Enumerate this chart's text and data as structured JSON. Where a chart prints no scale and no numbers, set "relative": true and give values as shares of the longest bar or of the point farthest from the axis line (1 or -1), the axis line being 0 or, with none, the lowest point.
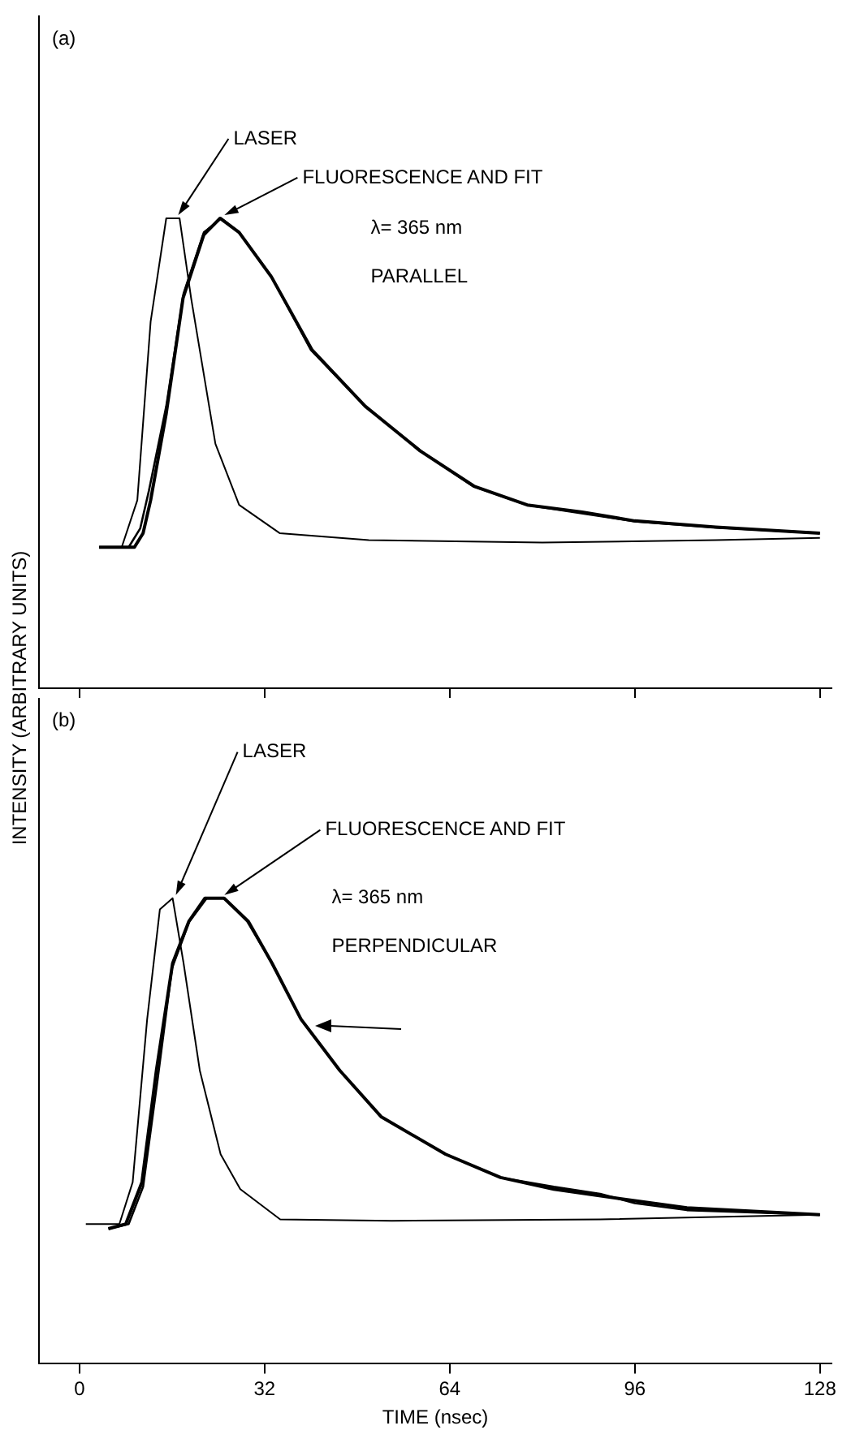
{
  "chart_data": [
    {
      "type": "line",
      "title": "(a)",
      "ylabel": "INTENSITY (ARBITRARY UNITS)",
      "relative": true,
      "xlim": [
        -7,
        130
      ],
      "xticks": [
        {
          "value": 0,
          "label": null
        },
        {
          "value": 32,
          "label": null
        },
        {
          "value": 64,
          "label": null
        },
        {
          "value": 96,
          "label": null
        },
        {
          "value": 128,
          "label": null
        }
      ],
      "tick_labels": false,
      "legend": false,
      "grid": false,
      "marker": "none",
      "annotations": [
        {
          "text": "LASER",
          "x": 16.5,
          "y": 1.0
        },
        {
          "text": "FLUORESCENCE AND FIT",
          "x": 24.5,
          "y": 1.0
        },
        "λ= 365 nm",
        "PARALLEL"
      ],
      "series": [
        {
          "color": "#000000",
          "x": [
            3.4,
            7.3,
            10,
            12.3,
            15,
            17.3,
            19.3,
            23.5,
            27.6,
            34.6,
            50,
            80,
            110,
            128
          ],
          "values": [
            0.3,
            0.3,
            0.4,
            0.78,
            1.0,
            1.0,
            0.83,
            0.52,
            0.39,
            0.33,
            0.315,
            0.31,
            0.315,
            0.32
          ]
        },
        {
          "color": "#000000",
          "x": [
            3.4,
            9.5,
            11,
            12.3,
            15,
            17.9,
            21.5,
            24.3,
            27.6,
            33.2,
            40.2,
            49.4,
            58.9,
            68.2,
            77.4,
            86.9,
            96,
            110,
            128
          ],
          "values": [
            0.3,
            0.3,
            0.33,
            0.4,
            0.585,
            0.83,
            0.965,
            1.0,
            0.97,
            0.875,
            0.72,
            0.6,
            0.505,
            0.43,
            0.39,
            0.375,
            0.356,
            0.343,
            0.33
          ]
        },
        {
          "color": "#000000",
          "x": [
            3.4,
            8.5,
            10.5,
            12,
            15,
            18,
            21.5,
            24.5,
            27.6,
            33,
            40,
            49.4,
            59,
            68,
            77.4,
            87,
            96,
            110,
            128
          ],
          "values": [
            0.3,
            0.3,
            0.34,
            0.42,
            0.6,
            0.84,
            0.97,
            1.0,
            0.97,
            0.88,
            0.72,
            0.6,
            0.505,
            0.43,
            0.39,
            0.372,
            0.355,
            0.342,
            0.33
          ]
        }
      ]
    },
    {
      "type": "line",
      "title": "(b)",
      "xlabel": "TIME (nsec)",
      "relative": true,
      "xlim": [
        -7,
        130
      ],
      "xticks": [
        0,
        32,
        64,
        96,
        128
      ],
      "legend": false,
      "grid": false,
      "marker": "none",
      "annotations": [
        {
          "text": "LASER",
          "x": 16.1,
          "y": 1.0
        },
        {
          "text": "FLUORESCENCE AND FIT",
          "x": 24.5,
          "y": 1.0
        },
        "λ= 365 nm",
        "PERPENDICULAR"
      ],
      "series": [
        {
          "color": "#000000",
          "x": [
            1.1,
            6.9,
            9.2,
            11.7,
            13.9,
            16.1,
            18,
            20.8,
            24.4,
            27.8,
            34.7,
            54,
            90,
            128
          ],
          "values": [
            0.3,
            0.3,
            0.39,
            0.74,
            0.976,
            1.0,
            0.86,
            0.63,
            0.45,
            0.375,
            0.31,
            0.307,
            0.31,
            0.32
          ]
        },
        {
          "color": "#000000",
          "x": [
            5,
            8,
            10.8,
            13.3,
            16.1,
            18.9,
            21.7,
            25,
            29.2,
            33.3,
            38.3,
            45,
            52.2,
            63.3,
            72.8,
            82,
            96,
            105,
            128
          ],
          "values": [
            0.29,
            0.3,
            0.39,
            0.63,
            0.86,
            0.95,
            1.0,
            1.0,
            0.95,
            0.86,
            0.74,
            0.63,
            0.53,
            0.45,
            0.4,
            0.375,
            0.35,
            0.335,
            0.32
          ]
        },
        {
          "color": "#000000",
          "x": [
            5,
            8.5,
            11,
            13.5,
            16,
            19,
            22,
            25,
            29,
            33.3,
            38.3,
            45,
            52.2,
            63.3,
            72.8,
            82,
            90,
            96,
            105,
            128
          ],
          "values": [
            0.29,
            0.3,
            0.38,
            0.61,
            0.85,
            0.95,
            1.0,
            1.0,
            0.95,
            0.86,
            0.74,
            0.63,
            0.53,
            0.45,
            0.4,
            0.38,
            0.365,
            0.345,
            0.33,
            0.32
          ]
        }
      ]
    }
  ]
}
